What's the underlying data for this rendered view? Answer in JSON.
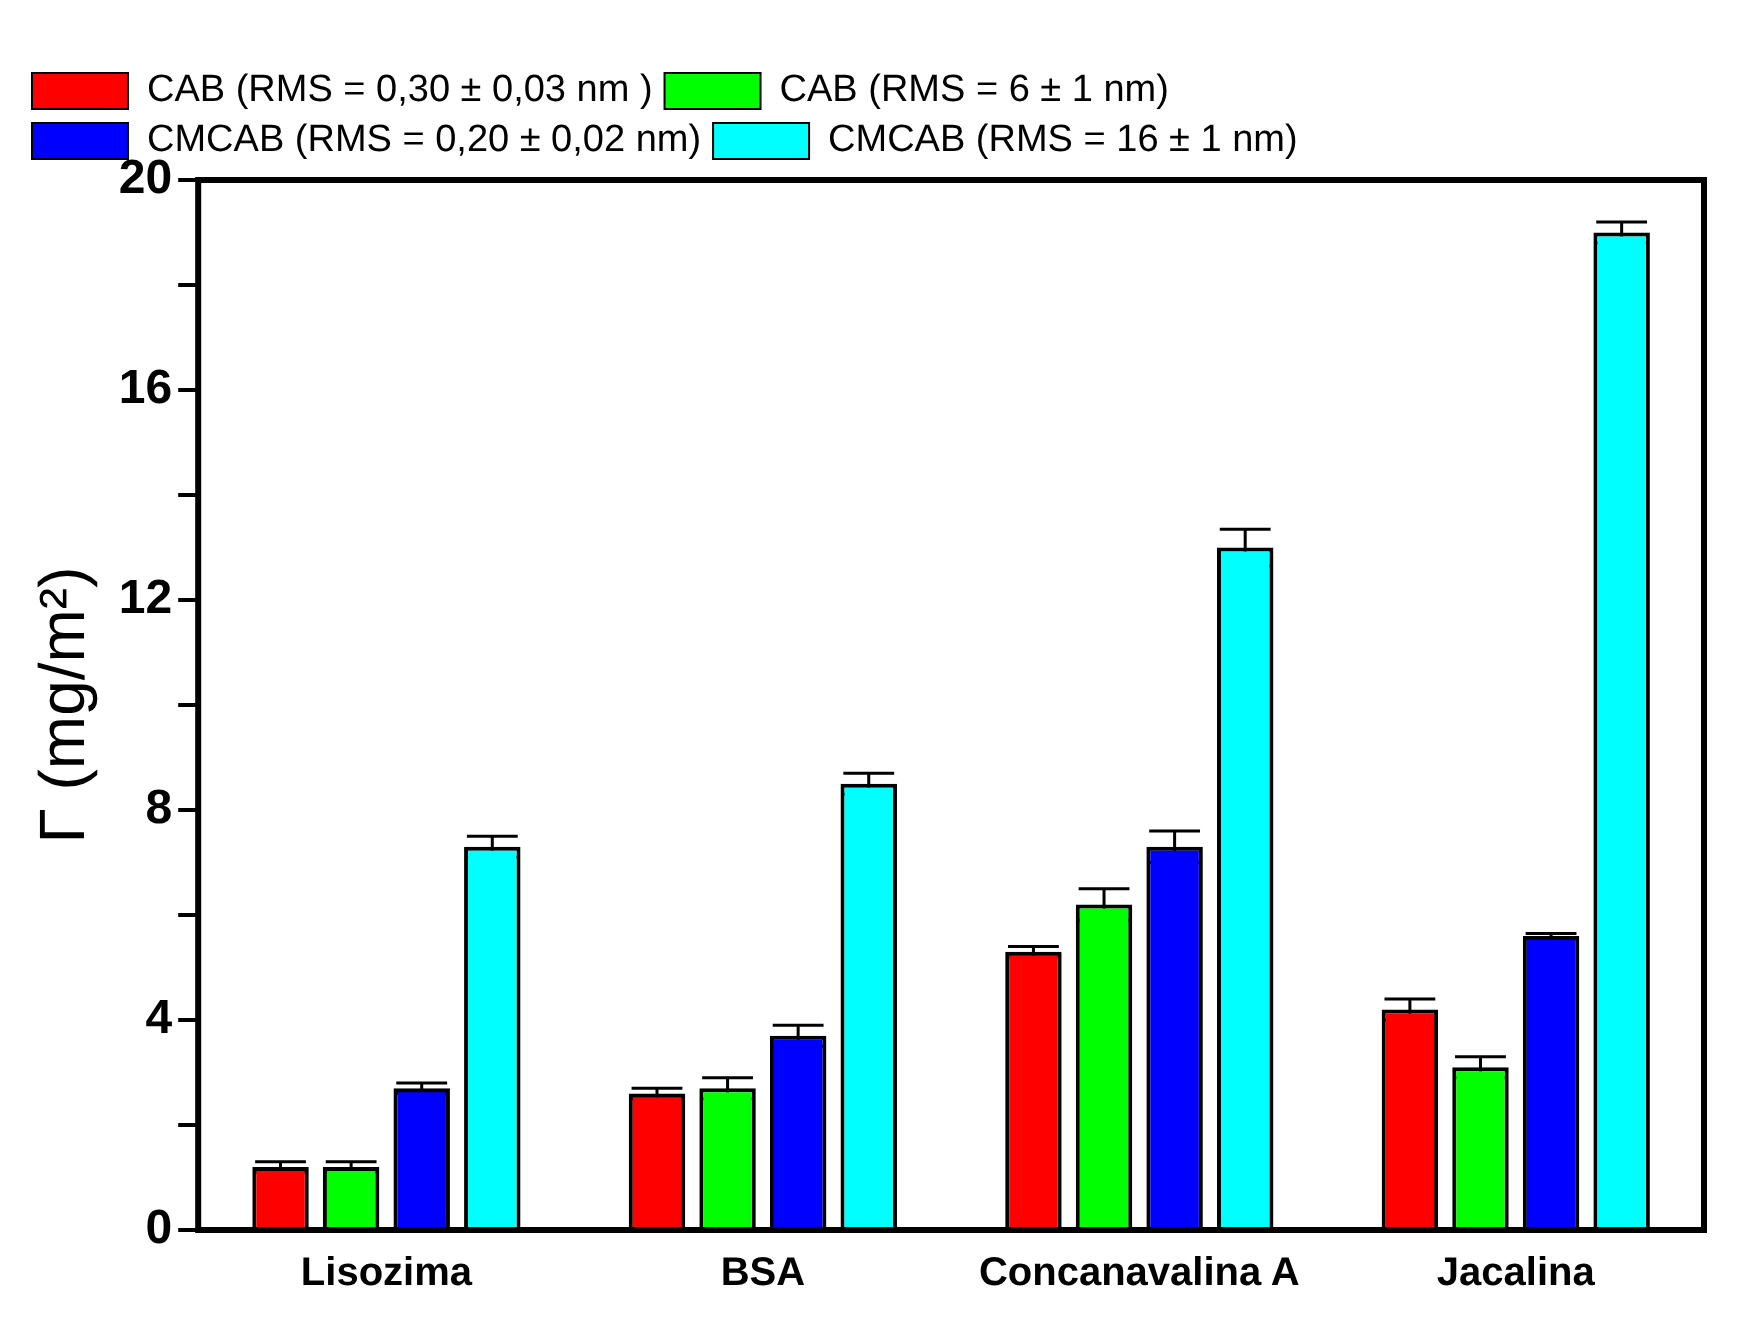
{
  "chart_data": {
    "type": "bar",
    "ylabel": "Γ (mg/m²)",
    "categories": [
      "Lisozima",
      "BSA",
      "Concanavalina A",
      "Jacalina"
    ],
    "series": [
      {
        "name": "CAB (RMS = 0,30 ± 0,03 nm )",
        "color": "#ff0000",
        "values": [
          1.2,
          2.6,
          5.3,
          4.2
        ],
        "errors": [
          0.1,
          0.1,
          0.1,
          0.2
        ]
      },
      {
        "name": "CAB (RMS = 6 ± 1 nm)",
        "color": "#00ff00",
        "values": [
          1.2,
          2.7,
          6.2,
          3.1
        ],
        "errors": [
          0.1,
          0.2,
          0.3,
          0.2
        ]
      },
      {
        "name": "CMCAB (RMS = 0,20 ± 0,02 nm)",
        "color": "#0000ff",
        "values": [
          2.7,
          3.7,
          7.3,
          5.6
        ],
        "errors": [
          0.1,
          0.2,
          0.3,
          0.05
        ]
      },
      {
        "name": "CMCAB (RMS = 16 ± 1 nm)",
        "color": "#00ffff",
        "values": [
          7.3,
          8.5,
          13.0,
          19.0
        ],
        "errors": [
          0.2,
          0.2,
          0.35,
          0.2
        ]
      }
    ],
    "ylim": [
      0,
      20
    ],
    "yticks": [
      0,
      {
        "value": 2,
        "label": null
      },
      4,
      {
        "value": 6,
        "label": null
      },
      8,
      {
        "value": 10,
        "label": null
      },
      12,
      {
        "value": 14,
        "label": null
      },
      16,
      {
        "value": 18,
        "label": null
      },
      20
    ],
    "grid": false,
    "legend": "top left"
  }
}
